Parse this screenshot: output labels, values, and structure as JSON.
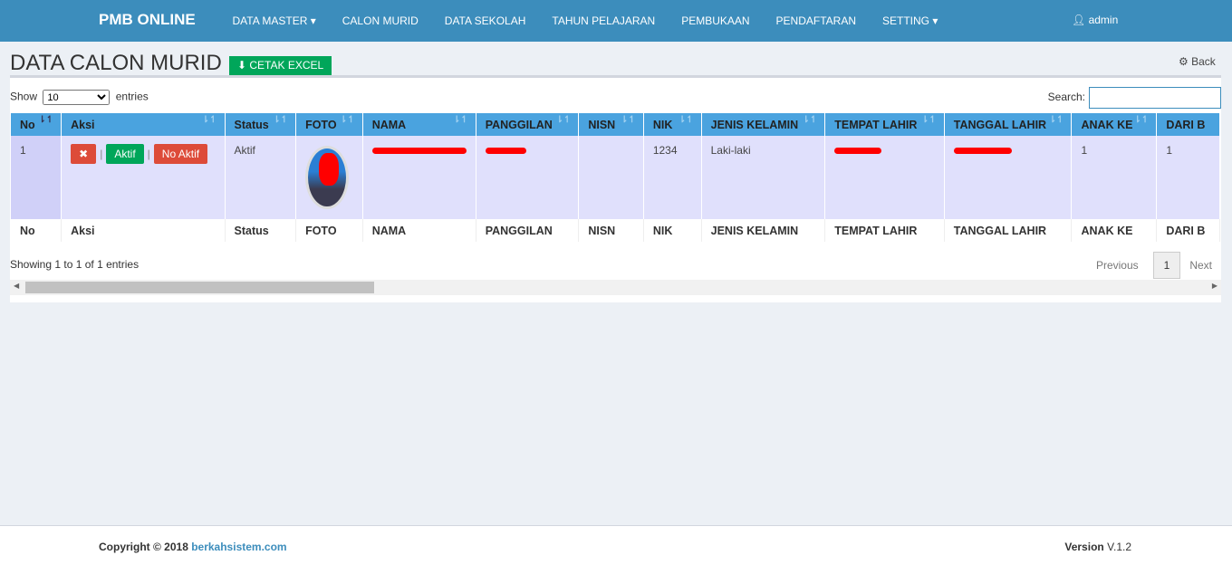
{
  "nav": {
    "brand": "PMB ONLINE",
    "items": [
      "DATA MASTER ▾",
      "CALON MURID",
      "DATA SEKOLAH",
      "TAHUN PELAJARAN",
      "PEMBUKAAN",
      "PENDAFTARAN",
      "SETTING ▾"
    ],
    "user": "admin"
  },
  "page": {
    "title": "DATA CALON MURID",
    "excel_label": "CETAK EXCEL",
    "back_label": "Back"
  },
  "table": {
    "show_label": "Show",
    "entries_label": "entries",
    "page_length": "10",
    "search_label": "Search:",
    "search_value": "",
    "columns": [
      "No",
      "Aksi",
      "Status",
      "FOTO",
      "NAMA",
      "PANGGILAN",
      "NISN",
      "NIK",
      "JENIS KELAMIN",
      "TEMPAT LAHIR",
      "TANGGAL LAHIR",
      "ANAK KE",
      "DARI B"
    ],
    "row": {
      "no": "1",
      "delete_label": "✖",
      "aktif_label": "Aktif",
      "noaktif_label": "No Aktif",
      "sep": "|",
      "status": "Aktif",
      "nisn": "",
      "nik": "1234",
      "jenis_kelamin": "Laki-laki",
      "anak_ke": "1",
      "dari": "1"
    },
    "info": "Showing 1 to 1 of 1 entries",
    "pagination": {
      "previous": "Previous",
      "current": "1",
      "next": "Next"
    }
  },
  "footer": {
    "copyright": "Copyright © 2018 ",
    "link": "berkahsistem.com",
    "version_label": "Version",
    "version": "V.1.2"
  },
  "colors": {
    "nav": "#3c8dbc",
    "header": "#4aa3df",
    "row": "#e0e0fc",
    "success": "#00a65a",
    "danger": "#dd4b39"
  }
}
